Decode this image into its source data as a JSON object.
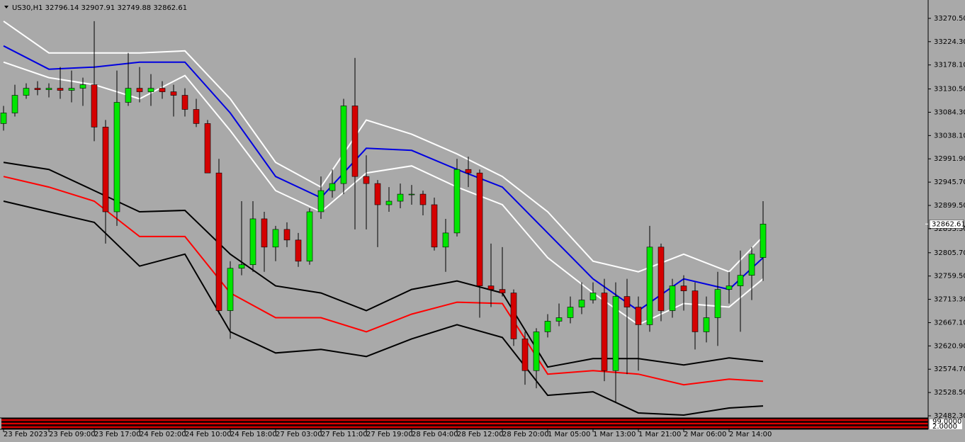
{
  "chart_data": {
    "type": "candlestick",
    "title": "US30,H1",
    "x": [
      0,
      1,
      2,
      3,
      4,
      5,
      6,
      7,
      8,
      9,
      10,
      11,
      12,
      13,
      14,
      15,
      16,
      17,
      18,
      19,
      20,
      21,
      22,
      23,
      24,
      25,
      26,
      27,
      28,
      29,
      30,
      31,
      32,
      33,
      34,
      35,
      36,
      37,
      38,
      39,
      40,
      41,
      42,
      43,
      44,
      45,
      46,
      47,
      48,
      49,
      50,
      51,
      52,
      53,
      54,
      55,
      56,
      57,
      58,
      59,
      60,
      61,
      62,
      63,
      64,
      65,
      66,
      67
    ],
    "open": [
      33061.9,
      33082.9,
      33117.9,
      33131.9,
      33129.1,
      33131.9,
      33127.7,
      33131.9,
      33138.9,
      33054.9,
      32886.9,
      33103.9,
      33131.9,
      33124.9,
      33131.9,
      33124.9,
      33117.9,
      33089.9,
      33061.9,
      32963.9,
      32690.9,
      32774.9,
      32781.9,
      32872.9,
      32816.9,
      32851.9,
      32830.9,
      32788.9,
      32886.9,
      32928.9,
      32942.9,
      33096.9,
      32956.9,
      32942.9,
      32900.9,
      32907.9,
      32921.9,
      32921.9,
      32900.9,
      32816.9,
      32844.9,
      32970.9,
      32963.9,
      32739.9,
      32732.9,
      32725.9,
      32634.9,
      32571.9,
      32648.9,
      32669.9,
      32676.9,
      32697.9,
      32711.9,
      32725.9,
      32571.9,
      32718.9,
      32697.9,
      32662.9,
      32816.9,
      32690.9,
      32739.9,
      32730.1,
      32648.9,
      32676.9,
      32732.9,
      32739.9,
      32760.9,
      32796.14
    ],
    "high": [
      33096.9,
      33138.9,
      33141.7,
      33145.9,
      33141.7,
      33173.9,
      33166.9,
      33152.9,
      33264.9,
      33068.9,
      33166.9,
      33201.9,
      33173.9,
      33159.9,
      33145.9,
      33138.9,
      33131.9,
      33110.9,
      33068.9,
      32991.9,
      32788.9,
      32907.9,
      32907.9,
      32886.9,
      32858.9,
      32865.9,
      32844.9,
      32893.9,
      32956.9,
      32970.9,
      33110.9,
      33192.1,
      32998.9,
      32949.9,
      32935.9,
      32942.9,
      32940.1,
      32928.9,
      32914.9,
      32872.9,
      32991.9,
      32996.1,
      32970.9,
      32823.9,
      32816.9,
      32732.9,
      32648.9,
      32655.9,
      32683.9,
      32704.9,
      32718.9,
      32746.9,
      32746.9,
      32753.9,
      32746.9,
      32753.9,
      32718.9,
      32858.9,
      32823.9,
      32753.9,
      32760.9,
      32746.9,
      32718.9,
      32767.9,
      32767.9,
      32809.9,
      32816.9,
      32907.91
    ],
    "low": [
      33047.9,
      33075.9,
      33110.9,
      33117.9,
      33113.7,
      33110.9,
      33103.9,
      33096.9,
      33026.9,
      32823.9,
      32858.9,
      33096.9,
      33103.9,
      33096.9,
      33110.9,
      33075.9,
      33075.9,
      33054.9,
      32963.9,
      32683.9,
      32634.9,
      32760.9,
      32767.9,
      32767.9,
      32788.9,
      32816.9,
      32777.7,
      32781.9,
      32872.9,
      32914.9,
      32921.9,
      32851.9,
      32851.9,
      32816.9,
      32886.9,
      32893.9,
      32900.9,
      32879.9,
      32809.9,
      32767.9,
      32837.9,
      32935.9,
      32676.9,
      32697.9,
      32718.9,
      32620.9,
      32543.9,
      32536.9,
      32637.7,
      32660.1,
      32665.7,
      32683.9,
      32704.9,
      32550.9,
      32508.9,
      32564.9,
      32571.9,
      32648.9,
      32669.9,
      32676.9,
      32690.9,
      32613.9,
      32627.9,
      32620.9,
      32704.9,
      32648.9,
      32711.9,
      32749.88
    ],
    "close": [
      33082.9,
      33117.9,
      33131.9,
      33129.1,
      33131.9,
      33127.7,
      33131.9,
      33138.9,
      33054.9,
      32886.9,
      33103.9,
      33131.9,
      33124.9,
      33131.9,
      33124.9,
      33117.9,
      33089.9,
      33061.9,
      32963.9,
      32690.9,
      32774.9,
      32781.9,
      32872.9,
      32816.9,
      32851.9,
      32830.9,
      32788.9,
      32886.9,
      32928.9,
      32942.9,
      33096.9,
      32956.9,
      32942.9,
      32900.9,
      32907.9,
      32921.9,
      32921.9,
      32900.9,
      32816.9,
      32844.9,
      32970.9,
      32963.9,
      32739.9,
      32732.9,
      32725.9,
      32634.9,
      32571.9,
      32648.9,
      32669.9,
      32676.9,
      32697.9,
      32711.9,
      32725.9,
      32571.9,
      32718.9,
      32697.9,
      32662.9,
      32816.9,
      32690.9,
      32739.9,
      32730.1,
      32648.9,
      32676.9,
      32732.9,
      32739.9,
      32760.9,
      32802.9,
      32862.61
    ],
    "up_color": "#00e600",
    "down_color": "#d40000",
    "lines": [
      {
        "color": "#0000e0",
        "x": [
          0,
          4,
          8,
          12,
          16,
          20,
          24,
          28,
          32,
          36,
          40,
          44,
          48,
          52,
          56,
          60,
          64,
          67
        ],
        "values": [
          33215.9,
          33169.7,
          33173.9,
          33183.7,
          33183.7,
          33082.9,
          32956.9,
          32914.9,
          33012.9,
          33008.7,
          32970.9,
          32935.9,
          32844.9,
          32753.9,
          32690.9,
          32753.9,
          32732.9,
          32795.9
        ]
      },
      {
        "color": "#ffffff",
        "x": [
          0,
          4,
          8,
          12,
          16,
          20,
          24,
          28,
          32,
          36,
          40,
          44,
          48,
          52,
          56,
          60,
          64,
          67
        ],
        "values": [
          33264.9,
          33201.9,
          33201.9,
          33201.9,
          33206.1,
          33110.9,
          32984.9,
          32935.9,
          33068.9,
          33040.9,
          33001.7,
          32956.9,
          32886.9,
          32788.9,
          32767.9,
          32802.9,
          32767.9,
          32837.9
        ]
      },
      {
        "color": "#ffffff",
        "x": [
          0,
          4,
          8,
          12,
          16,
          20,
          24,
          28,
          32,
          36,
          40,
          44,
          48,
          52,
          56,
          60,
          64,
          67
        ],
        "values": [
          33183.7,
          33152.9,
          33138.9,
          33110.9,
          33157.1,
          33047.9,
          32928.9,
          32886.9,
          32963.9,
          32977.9,
          32935.9,
          32900.9,
          32795.9,
          32725.9,
          32662.9,
          32704.9,
          32697.9,
          32753.9
        ]
      },
      {
        "color": "#ff0000",
        "x": [
          0,
          4,
          8,
          12,
          16,
          20,
          24,
          28,
          32,
          36,
          40,
          44,
          48,
          52,
          56,
          60,
          64,
          67
        ],
        "values": [
          32956.9,
          32935.9,
          32907.9,
          32837.9,
          32837.9,
          32725.9,
          32676.9,
          32676.9,
          32648.9,
          32683.9,
          32707.7,
          32704.9,
          32564.9,
          32571.9,
          32564.9,
          32543.9,
          32555.1,
          32550.9
        ]
      },
      {
        "color": "#000000",
        "x": [
          0,
          4,
          8,
          12,
          16,
          20,
          24,
          28,
          32,
          36,
          40,
          44,
          48,
          52,
          56,
          60,
          64,
          67
        ],
        "values": [
          32984.9,
          32970.9,
          32928.9,
          32886.9,
          32889.7,
          32802.9,
          32739.9,
          32725.9,
          32690.9,
          32732.9,
          32749.7,
          32725.9,
          32578.9,
          32595.7,
          32595.7,
          32583.1,
          32597.1,
          32590.1
        ]
      },
      {
        "color": "#000000",
        "x": [
          0,
          4,
          8,
          12,
          16,
          20,
          24,
          28,
          32,
          36,
          40,
          44,
          48,
          52,
          56,
          60,
          64,
          67
        ],
        "values": [
          32907.9,
          32886.9,
          32865.9,
          32779.1,
          32802.9,
          32648.9,
          32606.9,
          32613.9,
          32599.9,
          32634.9,
          32662.9,
          32637.7,
          32522.9,
          32529.9,
          32487.9,
          32483.7,
          32497.7,
          32501.9
        ]
      }
    ],
    "xlim": [
      -0.3125,
      81.5625
    ],
    "xticks": [
      {
        "value": 0,
        "label": "23 Feb 2023"
      },
      {
        "value": 4,
        "label": "23 Feb 09:00"
      },
      {
        "value": 8,
        "label": "23 Feb 17:00"
      },
      {
        "value": 12,
        "label": "24 Feb 02:00"
      },
      {
        "value": 16,
        "label": "24 Feb 10:00"
      },
      {
        "value": 20,
        "label": "24 Feb 18:00"
      },
      {
        "value": 24,
        "label": "27 Feb 03:00"
      },
      {
        "value": 28,
        "label": "27 Feb 11:00"
      },
      {
        "value": 32,
        "label": "27 Feb 19:00"
      },
      {
        "value": 36,
        "label": "28 Feb 04:00"
      },
      {
        "value": 40,
        "label": "28 Feb 12:00"
      },
      {
        "value": 44,
        "label": "28 Feb 20:00"
      },
      {
        "value": 48,
        "label": "1 Mar 05:00"
      },
      {
        "value": 52,
        "label": "1 Mar 13:00"
      },
      {
        "value": 56,
        "label": "1 Mar 21:00"
      },
      {
        "value": 60,
        "label": "2 Mar 06:00"
      },
      {
        "value": 64,
        "label": "2 Mar 14:00"
      }
    ],
    "ylim": [
      32478.1,
      33306.9
    ],
    "yticks": [
      {
        "value": 33270.5,
        "label": "33270.50"
      },
      {
        "value": 33224.3,
        "label": "33224.30"
      },
      {
        "value": 33178.1,
        "label": "33178.10"
      },
      {
        "value": 33130.5,
        "label": "33130.50"
      },
      {
        "value": 33084.3,
        "label": "33084.30"
      },
      {
        "value": 33038.1,
        "label": "33038.10"
      },
      {
        "value": 32991.9,
        "label": "32991.90"
      },
      {
        "value": 32945.7,
        "label": "32945.70"
      },
      {
        "value": 32899.5,
        "label": "32899.50"
      },
      {
        "value": 32853.3,
        "label": "32853.30"
      },
      {
        "value": 32805.7,
        "label": "32805.70"
      },
      {
        "value": 32759.5,
        "label": "32759.50"
      },
      {
        "value": 32713.3,
        "label": "32713.30"
      },
      {
        "value": 32667.1,
        "label": "32667.10"
      },
      {
        "value": 32620.9,
        "label": "32620.90"
      },
      {
        "value": 32574.7,
        "label": "32574.70"
      },
      {
        "value": 32528.5,
        "label": "32528.50"
      },
      {
        "value": 32482.3,
        "label": "32482.30"
      }
    ],
    "subwindow_labels": [
      "99.0000",
      "2.0000"
    ]
  }
}
